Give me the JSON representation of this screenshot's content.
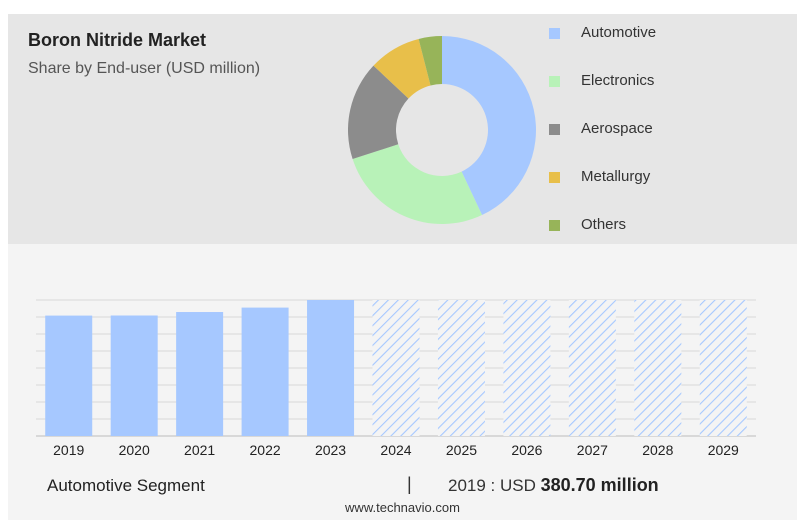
{
  "chart_data": [
    {
      "type": "pie",
      "title": "Boron Nitride Market",
      "subtitle": "Share by End-user (USD million)",
      "categories": [
        "Automotive",
        "Electronics",
        "Aerospace",
        "Metallurgy",
        "Others"
      ],
      "values": [
        43,
        27,
        17,
        9,
        4
      ],
      "colors": [
        "#a6c8ff",
        "#b8f2b8",
        "#8c8c8c",
        "#e8bf4a",
        "#97b459"
      ],
      "legend_position": "right"
    },
    {
      "type": "bar",
      "categories": [
        "2019",
        "2020",
        "2021",
        "2022",
        "2023",
        "2024",
        "2025",
        "2026",
        "2027",
        "2028",
        "2029"
      ],
      "values": [
        380.7,
        381,
        392,
        406,
        430,
        null,
        null,
        null,
        null,
        null,
        null
      ],
      "forecast_categories": [
        "2024",
        "2025",
        "2026",
        "2027",
        "2028",
        "2029"
      ],
      "ylim": [
        0,
        430
      ],
      "grid": true,
      "bar_color": "#a6c8ff",
      "forecast_pattern": "diagonal-hatch",
      "xlabel": "",
      "ylabel": ""
    }
  ],
  "footer": {
    "segment_label": "Automotive Segment",
    "divider": "|",
    "value_prefix": "2019 : USD",
    "value_bold": "380.70 million"
  },
  "watermark": "www.technavio.com"
}
